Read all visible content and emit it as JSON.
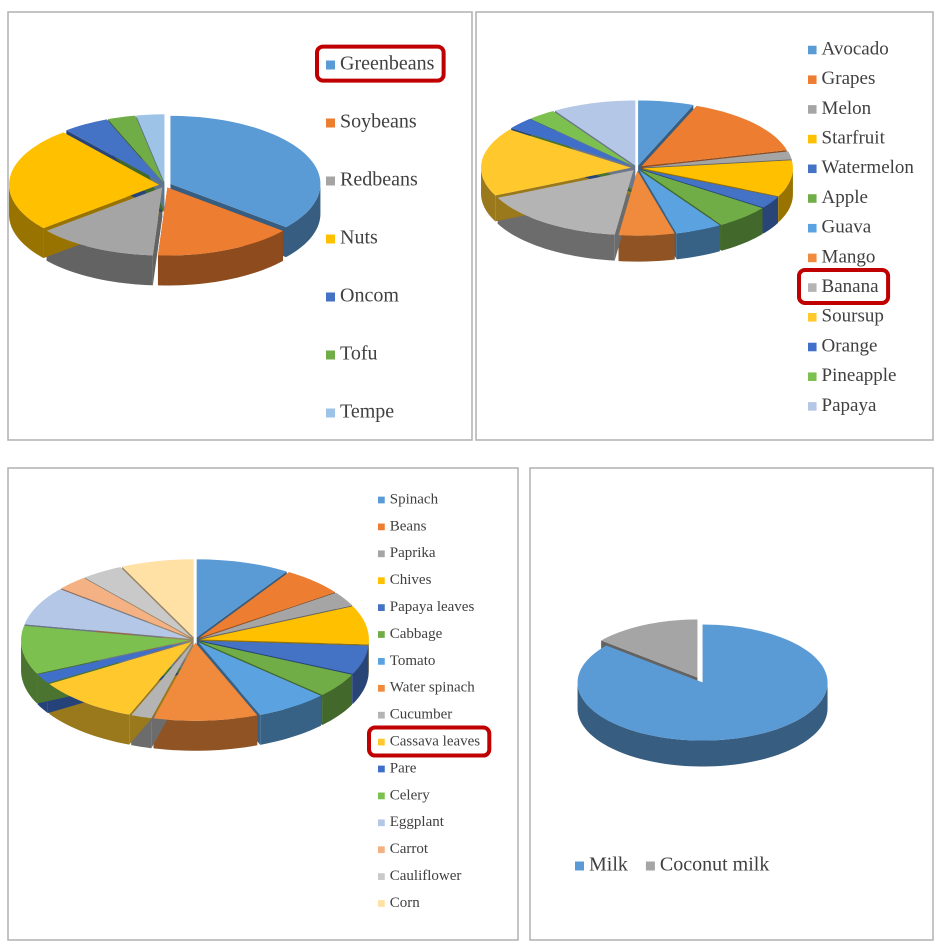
{
  "chart_data": [
    {
      "type": "pie",
      "legend": "right",
      "highlight": 0,
      "categories": [
        "Greenbeans",
        "Soybeans",
        "Redbeans",
        "Nuts",
        "Oncom",
        "Tofu",
        "Tempe"
      ],
      "values": [
        36,
        15,
        13,
        25,
        5,
        3,
        3
      ],
      "colors": [
        "#5b9bd5",
        "#ed7d31",
        "#a5a5a5",
        "#ffc000",
        "#4472c4",
        "#70ad47",
        "#9dc3e6"
      ]
    },
    {
      "type": "pie",
      "legend": "right",
      "highlight": 8,
      "categories": [
        "Avocado",
        "Grapes",
        "Melon",
        "Starfruit",
        "Watermelon",
        "Apple",
        "Guava",
        "Mango",
        "Banana",
        "Soursup",
        "Orange",
        "Pineapple",
        "Papaya"
      ],
      "values": [
        6,
        15,
        2,
        9,
        3,
        6,
        5,
        6,
        16,
        17,
        3,
        3,
        9
      ],
      "colors": [
        "#5b9bd5",
        "#ed7d31",
        "#a5a5a5",
        "#ffc000",
        "#4472c4",
        "#70ad47",
        "#5ba3e0",
        "#f08a3c",
        "#b4b4b4",
        "#ffc92e",
        "#3f6fc9",
        "#7cc14f",
        "#b4c7e7"
      ]
    },
    {
      "type": "pie",
      "legend": "right",
      "highlight": 9,
      "categories": [
        "Spinach",
        "Beans",
        "Paprika",
        "Chives",
        "Papaya leaves",
        "Cabbage",
        "Tomato",
        "Water spinach",
        "Cucumber",
        "Cassava leaves",
        "Pare",
        "Celery",
        "Eggplant",
        "Carrot",
        "Cauliflower",
        "Corn"
      ],
      "values": [
        9,
        6,
        3,
        8,
        6,
        5,
        7,
        10,
        2,
        10,
        2,
        10,
        8,
        3,
        4,
        7
      ],
      "colors": [
        "#5b9bd5",
        "#ed7d31",
        "#a5a5a5",
        "#ffc000",
        "#4472c4",
        "#70ad47",
        "#5ba3e0",
        "#f08a3c",
        "#b4b4b4",
        "#ffc92e",
        "#3f6fc9",
        "#7cc14f",
        "#b4c7e7",
        "#f4b183",
        "#c9c9c9",
        "#ffe0a5"
      ]
    },
    {
      "type": "pie",
      "legend": "bottom",
      "categories": [
        "Milk",
        "Coconut milk"
      ],
      "values": [
        86,
        14
      ],
      "colors": [
        "#5b9bd5",
        "#a5a5a5"
      ]
    }
  ]
}
